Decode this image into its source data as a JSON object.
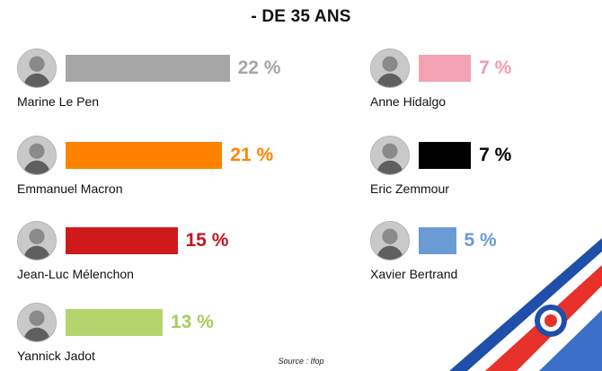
{
  "chart_data": {
    "type": "bar",
    "title": "- DE 35 ANS",
    "unit": "%",
    "candidates": [
      {
        "name": "Marine Le Pen",
        "value": 22,
        "label": "22 %",
        "color": "#a6a6a6",
        "label_color": "#a6a6a6"
      },
      {
        "name": "Emmanuel Macron",
        "value": 21,
        "label": "21 %",
        "color": "#ff8300",
        "label_color": "#ff8300"
      },
      {
        "name": "Jean-Luc Mélenchon",
        "value": 15,
        "label": "15 %",
        "color": "#d0191b",
        "label_color": "#c4161c"
      },
      {
        "name": "Yannick Jadot",
        "value": 13,
        "label": "13 %",
        "color": "#b6d46c",
        "label_color": "#a8cc5c"
      },
      {
        "name": "Anne Hidalgo",
        "value": 7,
        "label": "7 %",
        "color": "#f4a3b4",
        "label_color": "#f29bb0"
      },
      {
        "name": "Eric Zemmour",
        "value": 7,
        "label": "7 %",
        "color": "#000000",
        "label_color": "#000000"
      },
      {
        "name": "Xavier Bertrand",
        "value": 5,
        "label": "5 %",
        "color": "#6a9bd5",
        "label_color": "#6a9bd5"
      }
    ],
    "source": "Source :  Ifop"
  },
  "decoration": {
    "ring_colors": [
      "#1f4fa8",
      "#ffffff",
      "#e8312b"
    ],
    "stripe_colors": [
      "#1f4fa8",
      "#e8312b",
      "#3c6fc9"
    ]
  }
}
